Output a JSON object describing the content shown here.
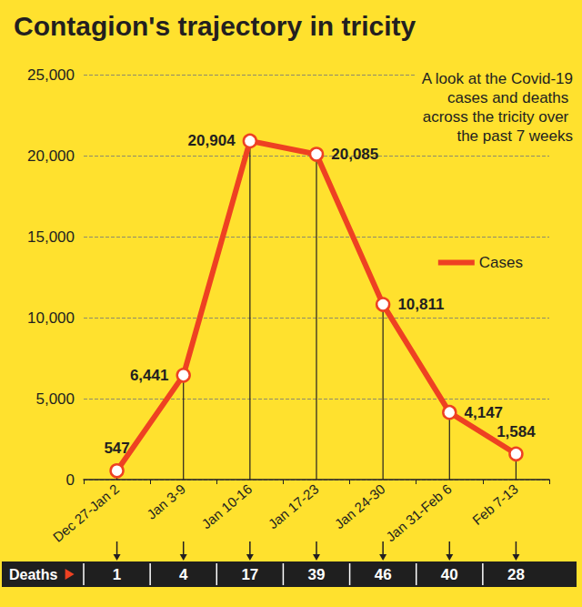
{
  "chart_data": {
    "type": "line",
    "title": "Contagion's trajectory in tricity",
    "subtitle": "A look at the Covid-19 cases and deaths across the tricity over the past 7 weeks",
    "categories": [
      "Dec 27-Jan 2",
      "Jan 3-9",
      "Jan 10-16",
      "Jan 17-23",
      "Jan 24-30",
      "Jan 31-Feb 6",
      "Feb 7-13"
    ],
    "series": [
      {
        "name": "Cases",
        "color": "#EE4122",
        "values": [
          547,
          6441,
          20904,
          20085,
          10811,
          4147,
          1584
        ],
        "value_labels": [
          "547",
          "6,441",
          "20,904",
          "20,085",
          "10,811",
          "4,147",
          "1,584"
        ]
      }
    ],
    "deaths": {
      "label": "Deaths",
      "values": [
        1,
        4,
        17,
        39,
        46,
        40,
        28
      ]
    },
    "ylim": [
      0,
      25000
    ],
    "yticks": [
      0,
      {
        "value": 5000,
        "label": "5,000"
      },
      {
        "value": 10000,
        "label": "10,000"
      },
      {
        "value": 15000,
        "label": "15,000"
      },
      {
        "value": 20000,
        "label": "20,000"
      },
      {
        "value": 25000,
        "label": "25,000"
      }
    ],
    "grid": true,
    "legend": "right",
    "data_labels": true,
    "marker": "circle"
  }
}
